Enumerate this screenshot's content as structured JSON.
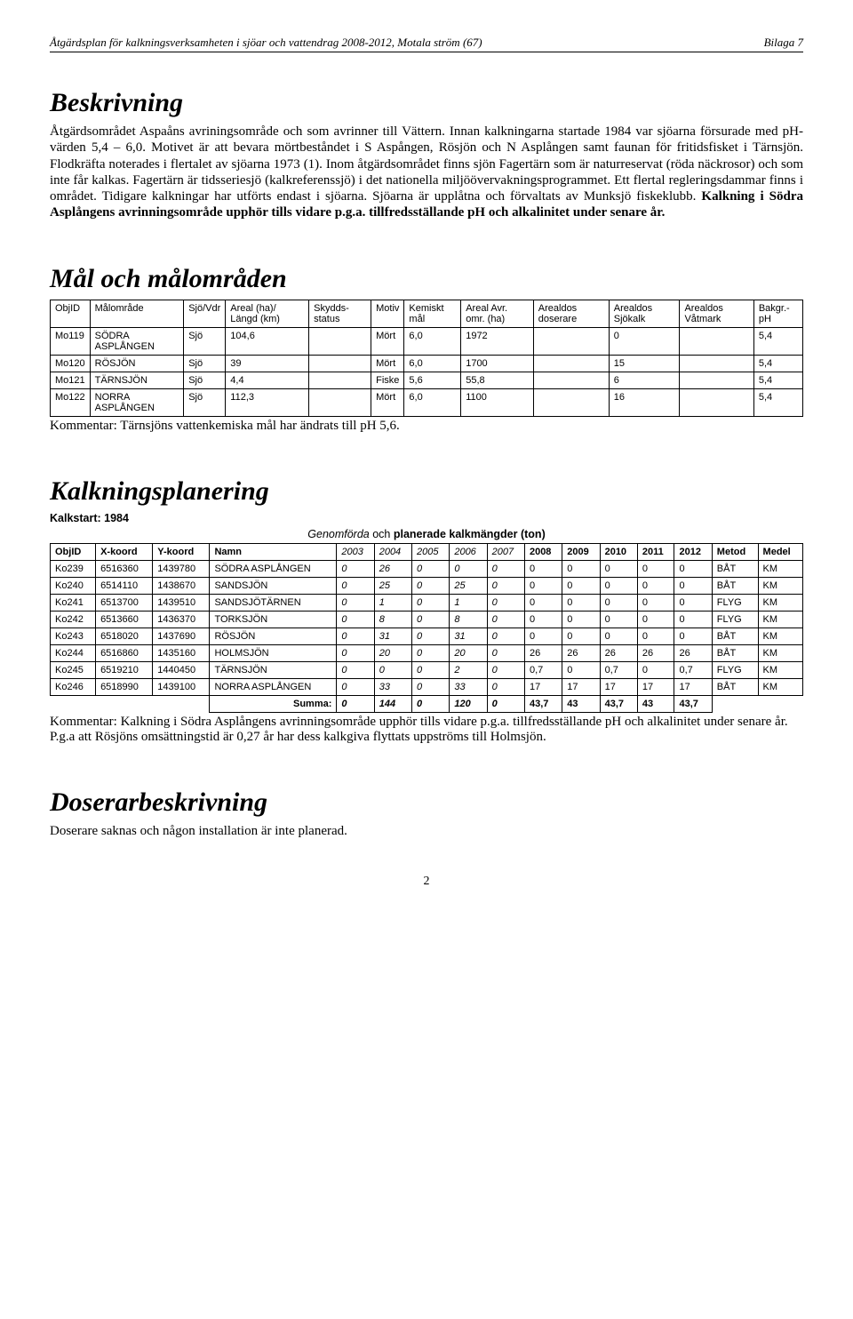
{
  "header": {
    "left": "Åtgärdsplan för kalkningsverksamheten i sjöar och vattendrag 2008-2012, Motala ström (67)",
    "right": "Bilaga 7"
  },
  "beskrivning": {
    "title": "Beskrivning",
    "para": "Åtgärdsområdet Aspaåns avriningsområde och som avrinner till Vättern. Innan kalkningarna startade 1984 var sjöarna försurade med pH-värden 5,4 – 6,0. Motivet är att bevara mörtbeståndet i S Aspången, Rösjön och N Asplången samt faunan för fritidsfisket i Tärnsjön. Flodkräfta noterades i flertalet av sjöarna 1973 (1). Inom åtgärdsområdet finns sjön Fagertärn som är naturreservat (röda näckrosor) och som inte får kalkas. Fagertärn är tidsseriesjö (kalkreferenssjö) i det nationella miljöövervakningsprogrammet. Ett flertal regleringsdammar finns i området. Tidigare kalkningar har utförts endast i sjöarna. Sjöarna är upplåtna och förvaltats av Munksjö fiskeklubb. ",
    "bold": "Kalkning i Södra Asplångens avrinningsområde upphör tills vidare p.g.a. tillfredsställande pH och alkalinitet under senare år."
  },
  "mal": {
    "title": "Mål och målområden",
    "columns": [
      "ObjID",
      "Målområde",
      "Sjö/Vdr",
      "Areal (ha)/ Längd (km)",
      "Skydds-status",
      "Motiv",
      "Kemiskt mål",
      "Areal Avr. omr. (ha)",
      "Arealdos doserare",
      "Arealdos Sjökalk",
      "Arealdos Våtmark",
      "Bakgr.-pH"
    ],
    "rows": [
      [
        "Mo119",
        "SÖDRA ASPLÅNGEN",
        "Sjö",
        "104,6",
        "",
        "Mört",
        "6,0",
        "1972",
        "",
        "0",
        "",
        "5,4"
      ],
      [
        "Mo120",
        "RÖSJÖN",
        "Sjö",
        "39",
        "",
        "Mört",
        "6,0",
        "1700",
        "",
        "15",
        "",
        "5,4"
      ],
      [
        "Mo121",
        "TÄRNSJÖN",
        "Sjö",
        "4,4",
        "",
        "Fiske",
        "5,6",
        "55,8",
        "",
        "6",
        "",
        "5,4"
      ],
      [
        "Mo122",
        "NORRA ASPLÅNGEN",
        "Sjö",
        "112,3",
        "",
        "Mört",
        "6,0",
        "1100",
        "",
        "16",
        "",
        "5,4"
      ]
    ],
    "comment": "Kommentar: Tärnsjöns vattenkemiska mål har ändrats till pH 5,6."
  },
  "kalk": {
    "title": "Kalkningsplanering",
    "kalkstart": "Kalkstart: 1984",
    "caption_it": "Genomförda",
    "caption_mid": " och ",
    "caption_bd": "planerade kalkmängder (ton)",
    "columns": [
      "ObjID",
      "X-koord",
      "Y-koord",
      "Namn",
      "2003",
      "2004",
      "2005",
      "2006",
      "2007",
      "2008",
      "2009",
      "2010",
      "2011",
      "2012",
      "Metod",
      "Medel"
    ],
    "rows": [
      [
        "Ko239",
        "6516360",
        "1439780",
        "SÖDRA ASPLÅNGEN",
        "0",
        "26",
        "0",
        "0",
        "0",
        "0",
        "0",
        "0",
        "0",
        "0",
        "BÅT",
        "KM"
      ],
      [
        "Ko240",
        "6514110",
        "1438670",
        "SANDSJÖN",
        "0",
        "25",
        "0",
        "25",
        "0",
        "0",
        "0",
        "0",
        "0",
        "0",
        "BÅT",
        "KM"
      ],
      [
        "Ko241",
        "6513700",
        "1439510",
        "SANDSJÖTÄRNEN",
        "0",
        "1",
        "0",
        "1",
        "0",
        "0",
        "0",
        "0",
        "0",
        "0",
        "FLYG",
        "KM"
      ],
      [
        "Ko242",
        "6513660",
        "1436370",
        "TORKSJÖN",
        "0",
        "8",
        "0",
        "8",
        "0",
        "0",
        "0",
        "0",
        "0",
        "0",
        "FLYG",
        "KM"
      ],
      [
        "Ko243",
        "6518020",
        "1437690",
        "RÖSJÖN",
        "0",
        "31",
        "0",
        "31",
        "0",
        "0",
        "0",
        "0",
        "0",
        "0",
        "BÅT",
        "KM"
      ],
      [
        "Ko244",
        "6516860",
        "1435160",
        "HOLMSJÖN",
        "0",
        "20",
        "0",
        "20",
        "0",
        "26",
        "26",
        "26",
        "26",
        "26",
        "BÅT",
        "KM"
      ],
      [
        "Ko245",
        "6519210",
        "1440450",
        "TÄRNSJÖN",
        "0",
        "0",
        "0",
        "2",
        "0",
        "0,7",
        "0",
        "0,7",
        "0",
        "0,7",
        "FLYG",
        "KM"
      ],
      [
        "Ko246",
        "6518990",
        "1439100",
        "NORRA ASPLÅNGEN",
        "0",
        "33",
        "0",
        "33",
        "0",
        "17",
        "17",
        "17",
        "17",
        "17",
        "BÅT",
        "KM"
      ]
    ],
    "summa_label": "Summa:",
    "summa": [
      "0",
      "144",
      "0",
      "120",
      "0",
      "43,7",
      "43",
      "43,7",
      "43",
      "43,7"
    ],
    "comment": "Kommentar: Kalkning i Södra Asplångens avrinningsområde upphör tills vidare p.g.a. tillfredsställande pH och alkalinitet under senare år. P.g.a att Rösjöns omsättningstid är 0,27 år har dess kalkgiva flyttats uppströms till Holmsjön."
  },
  "doser": {
    "title": "Doserarbeskrivning",
    "para": "Doserare saknas och någon installation är inte planerad."
  },
  "page": "2"
}
